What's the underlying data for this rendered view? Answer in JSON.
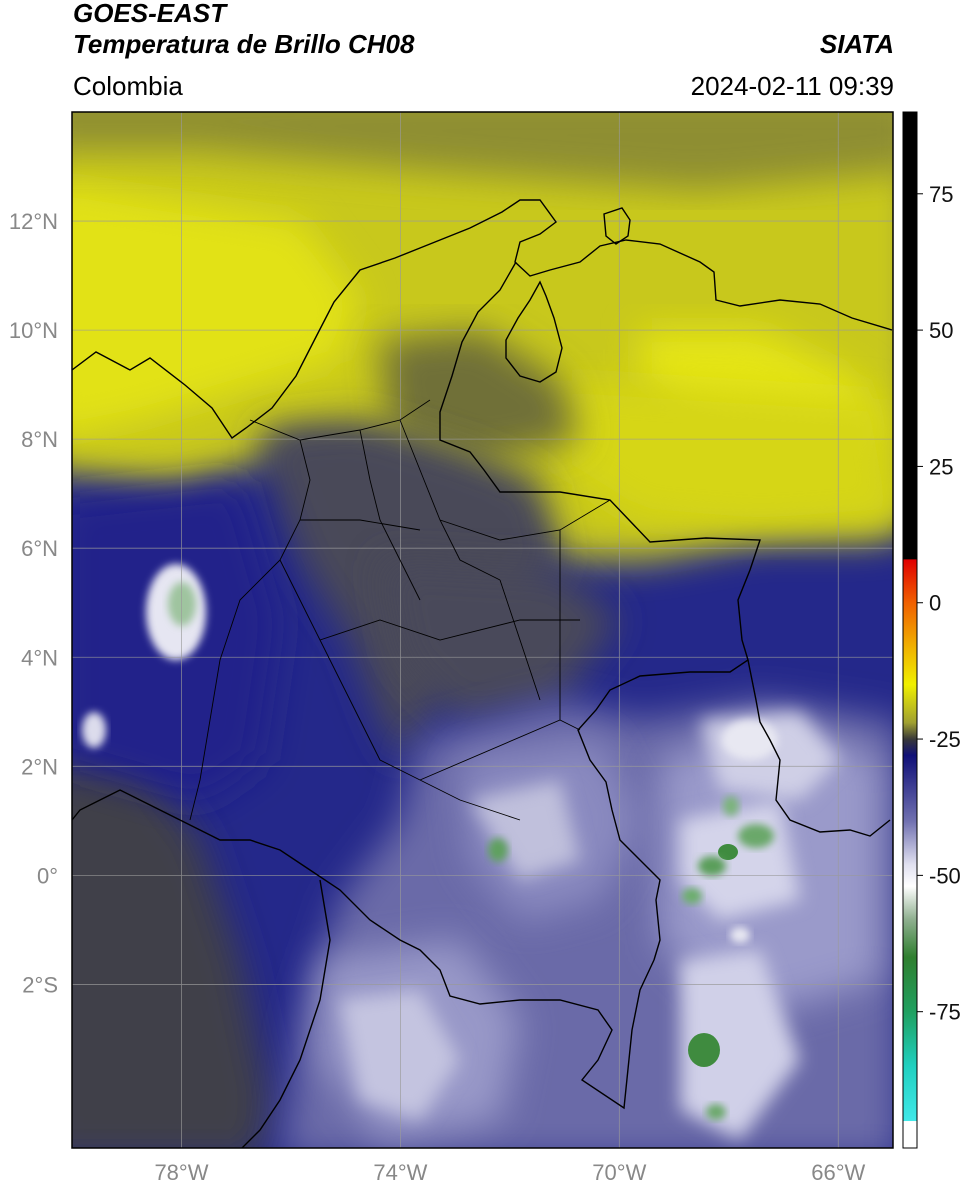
{
  "header": {
    "title_line1": "GOES-EAST",
    "title_line2": "Temperatura de Brillo CH08",
    "brand": "SIATA",
    "region": "Colombia",
    "datetime": "2024-02-11 09:39"
  },
  "map": {
    "lon_ticks": [
      {
        "value": -78,
        "label": "78°W"
      },
      {
        "value": -74,
        "label": "74°W"
      },
      {
        "value": -70,
        "label": "70°W"
      },
      {
        "value": -66,
        "label": "66°W"
      }
    ],
    "lat_ticks": [
      {
        "value": 12,
        "label": "12°N"
      },
      {
        "value": 10,
        "label": "10°N"
      },
      {
        "value": 8,
        "label": "8°N"
      },
      {
        "value": 6,
        "label": "6°N"
      },
      {
        "value": 4,
        "label": "4°N"
      },
      {
        "value": 2,
        "label": "2°N"
      },
      {
        "value": 0,
        "label": "0°"
      },
      {
        "value": -2,
        "label": "2°S"
      }
    ],
    "extent": {
      "lon_min": -80,
      "lon_max": -65,
      "lat_min": -5,
      "lat_max": 14
    },
    "colors": {
      "ocean_cold": "#2a2f8c",
      "warm_yellow": "#e5e512",
      "mid_gray": "#45464e",
      "cloud_white": "#e8e8f0",
      "very_cold_green": "#3f8b3f"
    }
  },
  "colorbar": {
    "min": -100,
    "max": 90,
    "ticks": [
      {
        "value": 75,
        "label": "75"
      },
      {
        "value": 50,
        "label": "50"
      },
      {
        "value": 25,
        "label": "25"
      },
      {
        "value": 0,
        "label": "0"
      },
      {
        "value": -25,
        "label": "-25"
      },
      {
        "value": -50,
        "label": "-50"
      },
      {
        "value": -75,
        "label": "-75"
      }
    ],
    "stops": [
      {
        "value": 90,
        "color": "#000000"
      },
      {
        "value": 8,
        "color": "#000000"
      },
      {
        "value": 7.9,
        "color": "#e00000"
      },
      {
        "value": 0,
        "color": "#f06000"
      },
      {
        "value": -8,
        "color": "#f0b000"
      },
      {
        "value": -15,
        "color": "#f0f000"
      },
      {
        "value": -22,
        "color": "#a0a030"
      },
      {
        "value": -25,
        "color": "#383838"
      },
      {
        "value": -28,
        "color": "#101078"
      },
      {
        "value": -40,
        "color": "#7070b0"
      },
      {
        "value": -48,
        "color": "#e0e0f0"
      },
      {
        "value": -52,
        "color": "#ffffff"
      },
      {
        "value": -58,
        "color": "#90b090"
      },
      {
        "value": -65,
        "color": "#2f7f2f"
      },
      {
        "value": -75,
        "color": "#20a060"
      },
      {
        "value": -85,
        "color": "#20d0c0"
      },
      {
        "value": -95,
        "color": "#40e8e8"
      },
      {
        "value": -95.1,
        "color": "#ffffff"
      },
      {
        "value": -100,
        "color": "#ffffff"
      }
    ]
  }
}
